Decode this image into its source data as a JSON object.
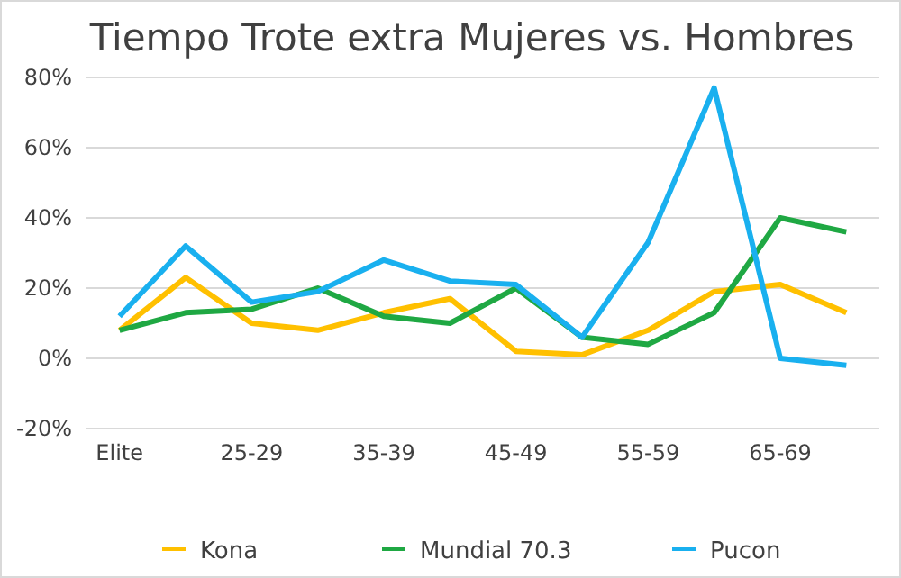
{
  "chart_data": {
    "type": "line",
    "title": "Tiempo Trote extra Mujeres vs. Hombres",
    "categories": [
      "Elite",
      null,
      "25-29",
      null,
      "35-39",
      null,
      "45-49",
      null,
      "55-59",
      null,
      "65-69",
      null
    ],
    "series": [
      {
        "name": "Kona",
        "color": "#ffc000",
        "values": [
          8,
          23,
          10,
          8,
          13,
          17,
          2,
          1,
          8,
          19,
          21,
          13
        ]
      },
      {
        "name": "Mundial 70.3",
        "color": "#1fa843",
        "values": [
          8,
          13,
          14,
          20,
          12,
          10,
          20,
          6,
          4,
          13,
          40,
          36
        ]
      },
      {
        "name": "Pucon",
        "color": "#19b0ef",
        "values": [
          12,
          32,
          16,
          19,
          28,
          22,
          21,
          6,
          33,
          77,
          0,
          -2
        ]
      }
    ],
    "ylim": [
      -20,
      80
    ],
    "yticks": [
      {
        "value": -20,
        "label": "-20%"
      },
      {
        "value": 0,
        "label": "0%"
      },
      {
        "value": 20,
        "label": "20%"
      },
      {
        "value": 40,
        "label": "40%"
      },
      {
        "value": 60,
        "label": "60%"
      },
      {
        "value": 80,
        "label": "80%"
      }
    ],
    "grid": "y",
    "legend": "bottom",
    "marker": "none",
    "line_style": "solid"
  }
}
